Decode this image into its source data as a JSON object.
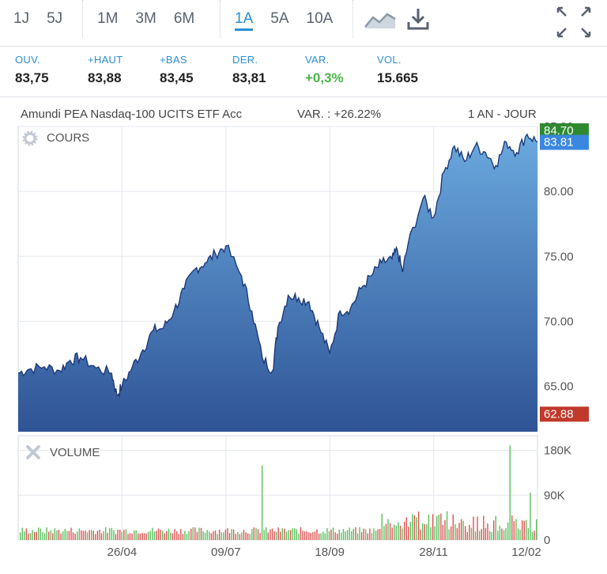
{
  "toolbar": {
    "periods_short": [
      "1J",
      "5J"
    ],
    "periods_mid": [
      "1M",
      "3M",
      "6M"
    ],
    "periods_long": [
      "1A",
      "5A",
      "10A"
    ],
    "active_period": "1A",
    "icons": [
      "area-chart-icon",
      "download-icon",
      "expand-icon"
    ]
  },
  "stats": [
    {
      "label": "OUV.",
      "value": "83,75"
    },
    {
      "label": "+HAUT",
      "value": "83,88"
    },
    {
      "label": "+BAS",
      "value": "83,45"
    },
    {
      "label": "DER.",
      "value": "83,81"
    },
    {
      "label": "VAR.",
      "value": "+0,3%",
      "positive": true
    },
    {
      "label": "VOL.",
      "value": "15.665"
    }
  ],
  "info": {
    "name": "Amundi PEA Nasdaq-100 UCITS ETF Acc",
    "variation": "VAR. : +26.22%",
    "range": "1 AN - JOUR"
  },
  "chart_data": [
    {
      "type": "area",
      "panel_label": "COURS",
      "panel_icon": "gear-icon",
      "y_ticks": [
        "85.00",
        "80.00",
        "75.00",
        "70.00",
        "65.00"
      ],
      "ylim": [
        61.5,
        85.0
      ],
      "markers": [
        {
          "label": "84.70",
          "value": 84.7,
          "color": "#2f8a2f"
        },
        {
          "label": "83.81",
          "value": 83.81,
          "color": "#3a87e0"
        },
        {
          "label": "62.88",
          "value": 62.88,
          "color": "#c0392b"
        }
      ],
      "x_positions": [
        0,
        0.02,
        0.05,
        0.08,
        0.1,
        0.12,
        0.15,
        0.18,
        0.19,
        0.2,
        0.22,
        0.24,
        0.26,
        0.28,
        0.3,
        0.32,
        0.34,
        0.36,
        0.38,
        0.4,
        0.43,
        0.45,
        0.47,
        0.49,
        0.5,
        0.52,
        0.54,
        0.56,
        0.58,
        0.6,
        0.62,
        0.64,
        0.66,
        0.68,
        0.7,
        0.72,
        0.73,
        0.74,
        0.75,
        0.78,
        0.8,
        0.82,
        0.84,
        0.86,
        0.88,
        0.9,
        0.92,
        0.94,
        0.96,
        0.98,
        1
      ],
      "values": [
        66.0,
        66.3,
        66.5,
        66.2,
        67.0,
        67.2,
        66.4,
        66.0,
        64.3,
        65.0,
        66.5,
        67.8,
        69.3,
        69.5,
        70.8,
        72.5,
        74.0,
        74.5,
        75.2,
        75.8,
        73.5,
        70.8,
        67.2,
        66.2,
        69.5,
        72.0,
        71.8,
        71.5,
        69.5,
        67.5,
        70.8,
        71.0,
        72.5,
        73.5,
        74.5,
        74.8,
        75.5,
        73.8,
        75.8,
        79.5,
        78.0,
        81.5,
        83.5,
        82.3,
        83.5,
        83.0,
        82.0,
        83.8,
        83.0,
        84.4,
        83.8
      ]
    },
    {
      "type": "bar",
      "panel_label": "VOLUME",
      "panel_icon": "close-x-icon",
      "y_ticks": [
        "180K",
        "90K",
        "0"
      ],
      "ylim": [
        0,
        200000
      ],
      "x_ticks": [
        "26/04",
        "09/07",
        "18/09",
        "28/11",
        "12/02"
      ],
      "spikes": [
        {
          "x": 0.47,
          "value": 150000
        },
        {
          "x": 0.948,
          "value": 190000
        },
        {
          "x": 0.99,
          "value": 95000
        }
      ]
    }
  ]
}
